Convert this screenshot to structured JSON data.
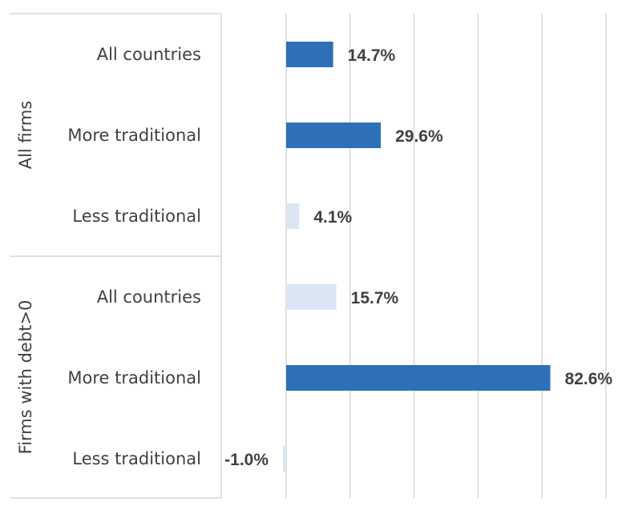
{
  "chart_data": {
    "type": "bar",
    "orientation": "horizontal",
    "xlim": [
      -1,
      105
    ],
    "grid": true,
    "colors": {
      "highlight": "#2e70b8",
      "muted": "#dae6f3",
      "text": "#404040",
      "grid": "#d9d9d9"
    },
    "groups": [
      {
        "name": "All firms",
        "items": [
          {
            "category": "All countries",
            "value": 14.7,
            "label": "14.7%",
            "color": "highlight"
          },
          {
            "category": "More traditional",
            "value": 29.6,
            "label": "29.6%",
            "color": "highlight"
          },
          {
            "category": "Less traditional",
            "value": 4.1,
            "label": "4.1%",
            "color": "muted"
          }
        ]
      },
      {
        "name": "Firms with debt>0",
        "items": [
          {
            "category": "All countries",
            "value": 15.7,
            "label": "15.7%",
            "color": "muted"
          },
          {
            "category": "More traditional",
            "value": 82.6,
            "label": "82.6%",
            "color": "highlight"
          },
          {
            "category": "Less traditional",
            "value": -1.0,
            "label": "-1.0%",
            "color": "muted"
          }
        ]
      }
    ]
  }
}
